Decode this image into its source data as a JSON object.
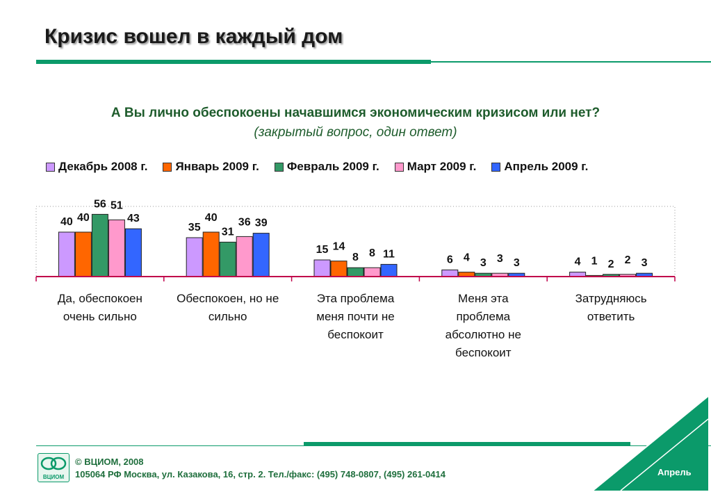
{
  "slide": {
    "title": "Кризис вошел в каждый дом",
    "question": "А Вы лично обеспокоены начавшимся экономическим кризисом или нет?",
    "subquestion": "(закрытый вопрос, один ответ)"
  },
  "chart_data": {
    "type": "bar",
    "categories": [
      [
        "Да, обеспокоен",
        "очень сильно"
      ],
      [
        "Обеспокоен, но не",
        "сильно"
      ],
      [
        "Эта проблема",
        "меня почти не",
        "беспокоит"
      ],
      [
        "Меня эта",
        "проблема",
        "абсолютно не",
        "беспокоит"
      ],
      [
        "Затрудняюсь",
        "ответить"
      ]
    ],
    "series": [
      {
        "name": "Декабрь 2008 г.",
        "color": "#cc99ff",
        "values": [
          40,
          35,
          15,
          6,
          4
        ]
      },
      {
        "name": "Январь 2009 г.",
        "color": "#ff6600",
        "values": [
          40,
          40,
          14,
          4,
          1
        ]
      },
      {
        "name": "Февраль 2009 г.",
        "color": "#339966",
        "values": [
          56,
          31,
          8,
          3,
          2
        ]
      },
      {
        "name": "Март 2009 г.",
        "color": "#ff99cc",
        "values": [
          51,
          36,
          8,
          3,
          2
        ]
      },
      {
        "name": "Апрель 2009 г.",
        "color": "#3366ff",
        "values": [
          43,
          39,
          11,
          3,
          3
        ]
      }
    ],
    "ylim": [
      0,
      60
    ],
    "legend": "top",
    "grid": false
  },
  "footer": {
    "copyright": "© ВЦИОМ, 2008",
    "address": "105064 РФ Москва, ул. Казакова, 16, стр. 2.  Тел./факс: (495) 748-0807, (495) 261-0414",
    "logo_text": "ВЦИОМ",
    "month": "Апрель"
  },
  "colors": {
    "accent": "#0b9a6a",
    "axis": "#c0004a",
    "heading_text": "#1e5c2c"
  }
}
